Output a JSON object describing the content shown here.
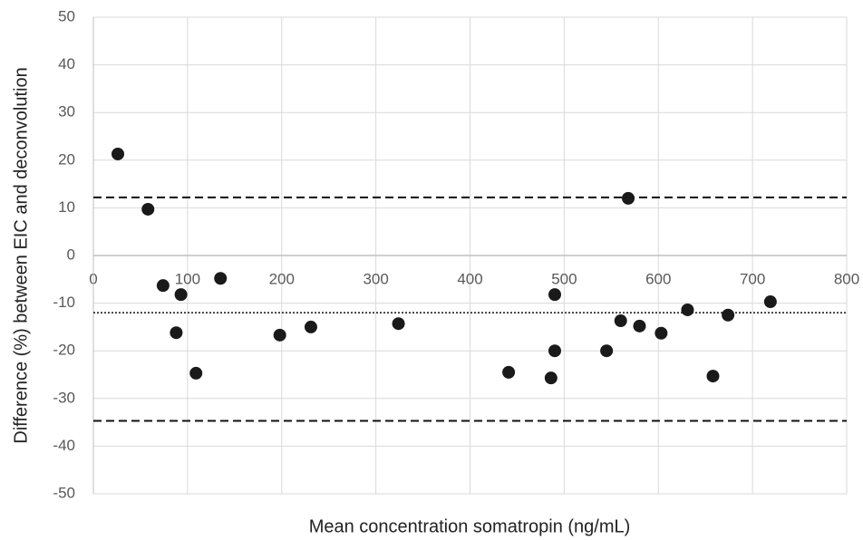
{
  "chart_data": {
    "type": "scatter",
    "x_label": "Mean concentration somatropin (ng/mL)",
    "y_label": "Difference (%) between EIC and deconvolution",
    "xlim": [
      0,
      800
    ],
    "ylim": [
      -50,
      50
    ],
    "xticks": [
      0,
      100,
      200,
      300,
      400,
      500,
      600,
      700,
      800
    ],
    "yticks": [
      -50,
      -40,
      -30,
      -20,
      -10,
      0,
      10,
      20,
      30,
      40,
      50
    ],
    "grid": true,
    "color": "#1a1a1a",
    "x": [
      26,
      58,
      74,
      88,
      93,
      109,
      135,
      198,
      231,
      324,
      441,
      486,
      490,
      490,
      545,
      560,
      568,
      580,
      603,
      631,
      658,
      674,
      719
    ],
    "values": [
      21.3,
      9.7,
      -6.3,
      -16.2,
      -8.2,
      -24.7,
      -4.8,
      -16.7,
      -15.0,
      -14.3,
      -24.5,
      -25.7,
      -8.2,
      -20.0,
      -20.0,
      -13.7,
      12.0,
      -14.8,
      -16.3,
      -11.4,
      -25.3,
      -12.5,
      -9.7
    ],
    "reference_lines": [
      {
        "value": 12.2,
        "style": "dashed"
      },
      {
        "value": -12.0,
        "style": "dotted"
      },
      {
        "value": -34.7,
        "style": "dashed"
      }
    ]
  }
}
